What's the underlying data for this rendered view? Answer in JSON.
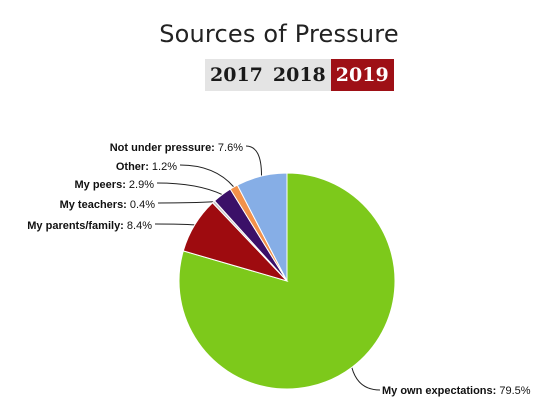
{
  "title": "Sources of Pressure",
  "year_tabs": [
    {
      "label": "2017",
      "active": false
    },
    {
      "label": "2018",
      "active": false
    },
    {
      "label": "2019",
      "active": true
    }
  ],
  "colors": {
    "active_tab": "#9e1016",
    "inactive_tab": "#e4e4e4"
  },
  "chart_data": {
    "type": "pie",
    "title": "Sources of Pressure",
    "unit": "%",
    "slices": [
      {
        "label": "My own expectations",
        "value": 79.5,
        "display": "79.5%",
        "color": "#7dc91b"
      },
      {
        "label": "My parents/family",
        "value": 8.4,
        "display": "8.4%",
        "color": "#9e0b0f"
      },
      {
        "label": "My teachers",
        "value": 0.4,
        "display": "0.4%",
        "color": "#c8c8c8"
      },
      {
        "label": "My peers",
        "value": 2.9,
        "display": "2.9%",
        "color": "#3b1068"
      },
      {
        "label": "Other",
        "value": 1.2,
        "display": "1.2%",
        "color": "#f2914a"
      },
      {
        "label": "Not under pressure",
        "value": 7.6,
        "display": "7.6%",
        "color": "#86aee6"
      }
    ]
  }
}
